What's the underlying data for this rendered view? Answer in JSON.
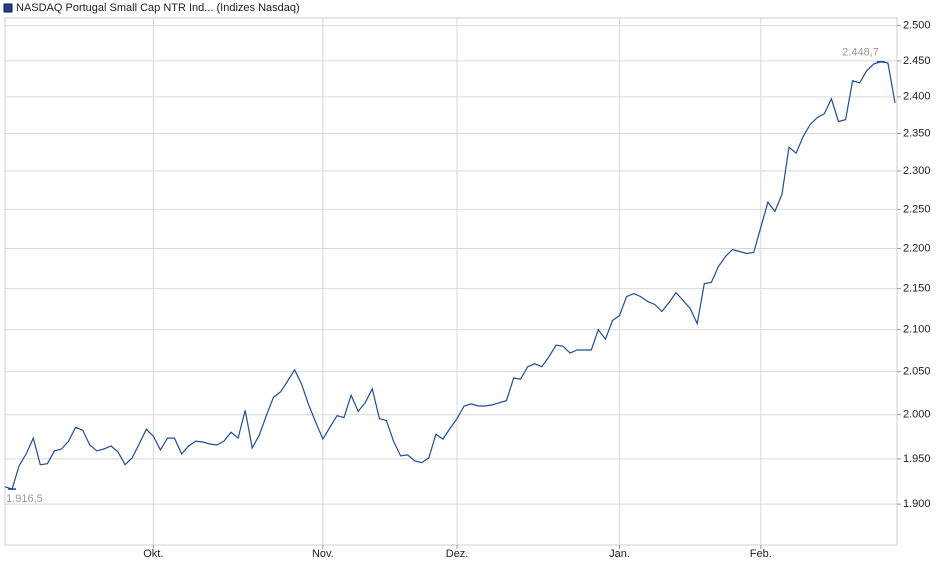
{
  "chart_data": {
    "type": "line",
    "title": "NASDAQ Portugal Small Cap NTR Ind... (Indizes Nasdaq)",
    "categories": [
      null,
      null,
      null,
      null,
      null,
      null,
      null,
      null,
      null,
      null,
      null,
      null,
      null,
      null,
      null,
      null,
      null,
      null,
      null,
      null,
      null,
      "Okt.",
      null,
      null,
      null,
      null,
      null,
      null,
      null,
      null,
      null,
      null,
      null,
      null,
      null,
      null,
      null,
      null,
      null,
      null,
      null,
      null,
      null,
      null,
      null,
      "Nov.",
      null,
      null,
      null,
      null,
      null,
      null,
      null,
      null,
      null,
      null,
      null,
      null,
      null,
      null,
      null,
      null,
      null,
      null,
      "Dez.",
      null,
      null,
      null,
      null,
      null,
      null,
      null,
      null,
      null,
      null,
      null,
      null,
      null,
      null,
      null,
      null,
      null,
      null,
      null,
      null,
      null,
      null,
      "Jan.",
      null,
      null,
      null,
      null,
      null,
      null,
      null,
      null,
      null,
      null,
      null,
      null,
      null,
      null,
      null,
      null,
      null,
      null,
      null,
      "Feb.",
      null,
      null,
      null,
      null,
      null,
      null,
      null,
      null,
      null,
      null,
      null,
      null,
      null,
      null,
      null,
      null,
      null,
      null,
      null
    ],
    "series": [
      {
        "name": "NASDAQ Portugal Small Cap NTR Ind... (Indizes Nasdaq)",
        "color": "#1f4e96",
        "values": [
          1919,
          1916.5,
          1942.4,
          1955.6,
          1973.3,
          1943.5,
          1944.6,
          1958.9,
          1961.1,
          1970,
          1985.6,
          1982.2,
          1965.6,
          1958.9,
          1961.1,
          1964.4,
          1957.8,
          1943.5,
          1951.1,
          1966.7,
          1983.3,
          1975.6,
          1960,
          1973.3,
          1973.3,
          1955.6,
          1964.4,
          1970,
          1968.9,
          1966.7,
          1965.6,
          1970,
          1980,
          1973.3,
          2005,
          1962.2,
          1976.7,
          1998.9,
          2020,
          2026.3,
          2038.8,
          2052.3,
          2035,
          2011.3,
          1991.1,
          1972.2,
          1985.6,
          1998.9,
          1996.7,
          2022.5,
          2003.8,
          2013.8,
          2030,
          1995.6,
          1993.3,
          1970,
          1953.3,
          1954.4,
          1947.8,
          1945.7,
          1951.1,
          1977.8,
          1972.2,
          1984.4,
          1995.6,
          2010,
          2012.5,
          2010,
          2010,
          2011.3,
          2013.8,
          2016.3,
          2042.5,
          2041.3,
          2055.8,
          2059.3,
          2055.8,
          2067.4,
          2081.4,
          2080.2,
          2072.1,
          2075.6,
          2075.6,
          2075.6,
          2100,
          2088.4,
          2111,
          2117.1,
          2140.2,
          2143.9,
          2140.2,
          2134.1,
          2130.5,
          2122,
          2133,
          2145.1,
          2135.4,
          2125.6,
          2107.3,
          2156.3,
          2157.5,
          2177.5,
          2190,
          2198.8,
          2196.3,
          2193.8,
          2195,
          2226.9,
          2259.2,
          2247.4,
          2269.7,
          2331.6,
          2323.7,
          2346.1,
          2362.2,
          2371.6,
          2377,
          2397.3,
          2366.2,
          2368.9,
          2422.2,
          2419.4,
          2436.1,
          2445.8,
          2448.7,
          2447.2,
          2391.7
        ]
      }
    ],
    "annotations": [
      {
        "label": "1.916,5",
        "value": 1916.5
      },
      {
        "label": "2.448,7",
        "value": 2448.7
      }
    ],
    "ylim": [
      1856,
      2511
    ],
    "yticks": [
      {
        "value": 1900,
        "label": "1.900"
      },
      {
        "value": 1950,
        "label": "1.950"
      },
      {
        "value": 2000,
        "label": "2.000"
      },
      {
        "value": 2050,
        "label": "2.050"
      },
      {
        "value": 2100,
        "label": "2.100"
      },
      {
        "value": 2150,
        "label": "2.150"
      },
      {
        "value": 2200,
        "label": "2.200"
      },
      {
        "value": 2250,
        "label": "2.250"
      },
      {
        "value": 2300,
        "label": "2.300"
      },
      {
        "value": 2350,
        "label": "2.350"
      },
      {
        "value": 2400,
        "label": "2.400"
      },
      {
        "value": 2450,
        "label": "2.450"
      },
      {
        "value": 2500,
        "label": "2.500"
      }
    ],
    "log_scale": true,
    "grid": true
  }
}
